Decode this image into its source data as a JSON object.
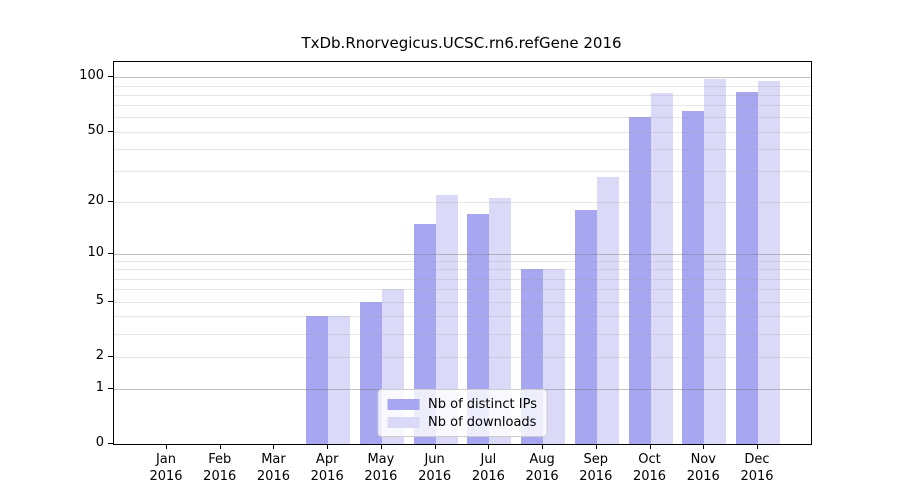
{
  "chart_data": {
    "type": "bar",
    "title": "TxDb.Rnorvegicus.UCSC.rn6.refGene 2016",
    "categories": [
      "Jan",
      "Feb",
      "Mar",
      "Apr",
      "May",
      "Jun",
      "Jul",
      "Aug",
      "Sep",
      "Oct",
      "Nov",
      "Dec"
    ],
    "x_tick_year": "2016",
    "series": [
      {
        "name": "Nb of distinct IPs",
        "color": "#a6a6f1",
        "values": [
          0,
          0,
          0,
          4,
          5,
          15,
          17,
          8,
          18,
          60,
          65,
          83
        ]
      },
      {
        "name": "Nb of downloads",
        "color": "#dadaf8",
        "values": [
          0,
          0,
          0,
          4,
          6,
          22,
          21,
          8,
          28,
          82,
          98,
          95
        ]
      }
    ],
    "y_ticks": [
      0,
      1,
      2,
      5,
      10,
      20,
      50,
      100
    ],
    "y_scale": "log1p",
    "y_max": 121,
    "grid": "horizontal",
    "grid_major_values": [
      1,
      10,
      100
    ],
    "grid_minor_values": [
      2,
      3,
      4,
      5,
      6,
      7,
      8,
      9,
      20,
      30,
      40,
      50,
      60,
      70,
      80,
      90
    ],
    "legend_position": "lower center"
  },
  "colors": {
    "background": "#ffffff",
    "axis": "#000000",
    "grid_major": "#c2c2c2",
    "grid_minor": "#e4e4e4",
    "legend_border": "#cccccc",
    "legend_background": "rgba(255,255,255,0.8)"
  }
}
